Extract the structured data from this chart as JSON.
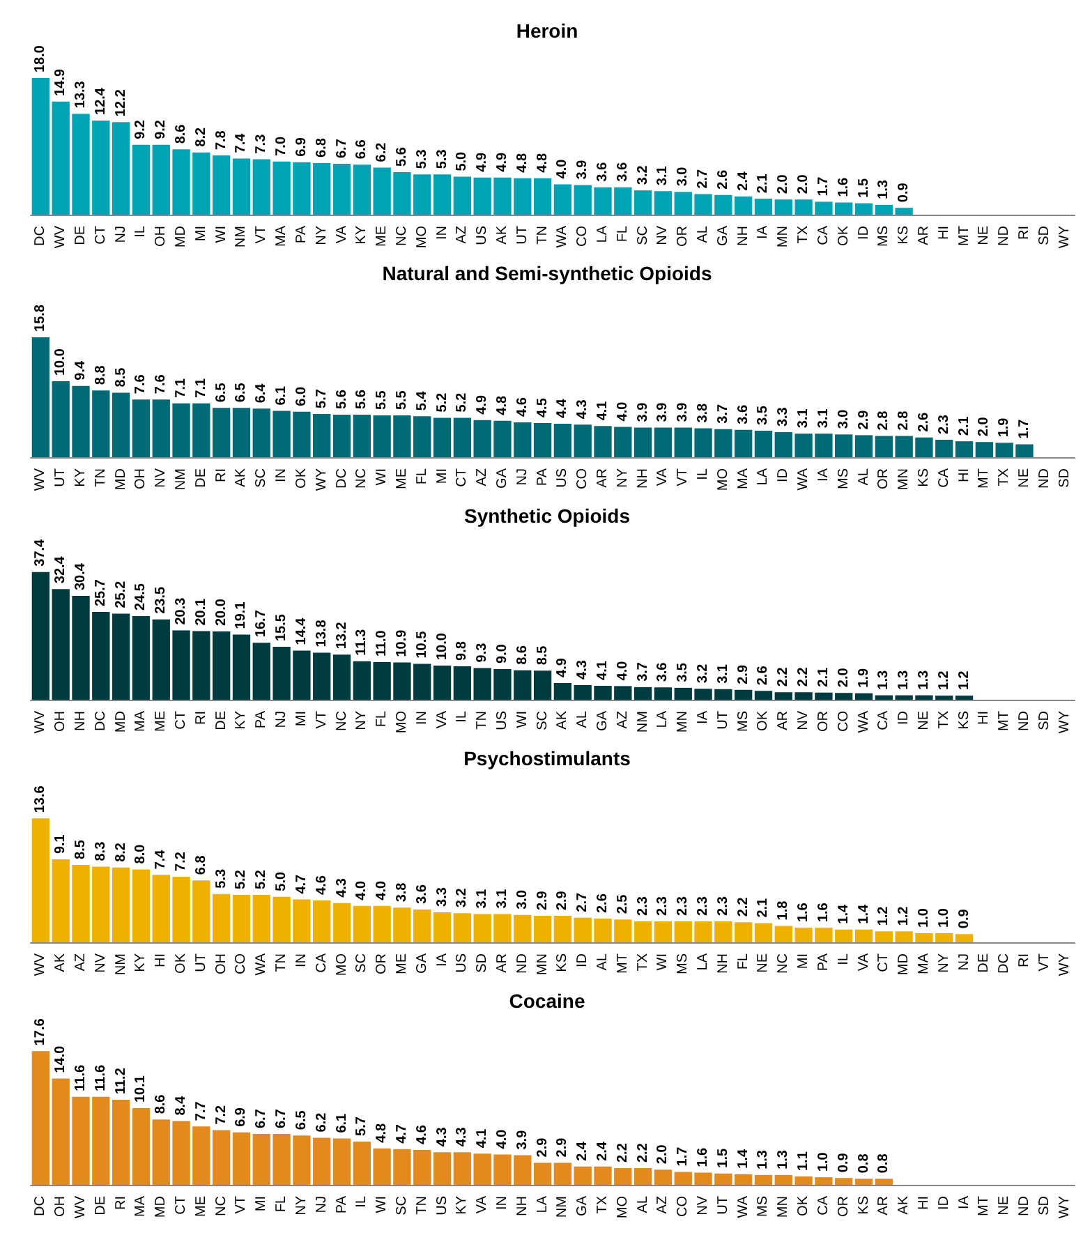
{
  "chart_data": [
    {
      "type": "bar",
      "title": "Heroin",
      "color": "#00a3b3",
      "categories": [
        "DC",
        "WV",
        "DE",
        "CT",
        "NJ",
        "IL",
        "OH",
        "MD",
        "MI",
        "WI",
        "NM",
        "VT",
        "MA",
        "PA",
        "NY",
        "VA",
        "KY",
        "ME",
        "NC",
        "MO",
        "IN",
        "AZ",
        "US",
        "AK",
        "UT",
        "TN",
        "WA",
        "CO",
        "LA",
        "FL",
        "SC",
        "NV",
        "OR",
        "AL",
        "GA",
        "NH",
        "IA",
        "MN",
        "TX",
        "CA",
        "OK",
        "ID",
        "MS",
        "KS",
        "AR",
        "HI",
        "MT",
        "NE",
        "ND",
        "RI",
        "SD",
        "WY"
      ],
      "values": [
        18.0,
        14.9,
        13.3,
        12.4,
        12.2,
        9.2,
        9.2,
        8.6,
        8.2,
        7.8,
        7.4,
        7.3,
        7.0,
        6.9,
        6.8,
        6.7,
        6.6,
        6.2,
        5.6,
        5.3,
        5.3,
        5.0,
        4.9,
        4.9,
        4.8,
        4.8,
        4.0,
        3.9,
        3.6,
        3.6,
        3.2,
        3.1,
        3.0,
        2.7,
        2.6,
        2.4,
        2.1,
        2.0,
        2.0,
        1.7,
        1.6,
        1.5,
        1.3,
        0.9,
        null,
        null,
        null,
        null,
        null,
        null,
        null,
        null
      ],
      "value_labels": [
        "18.0",
        "14.9",
        "13.3",
        "12.4",
        "12.2",
        "9.2",
        "9.2",
        "8.6",
        "8.2",
        "7.8",
        "7.4",
        "7.3",
        "7.0",
        "6.9",
        "6.8",
        "6.7",
        "6.6",
        "6.2",
        "5.6",
        "5.3",
        "5.3",
        "5.0",
        "4.9",
        "4.9",
        "4.8",
        "4.8",
        "4.0",
        "3.9",
        "3.6",
        "3.6",
        "3.2",
        "3.1",
        "3.0",
        "2.7",
        "2.6",
        "2.4",
        "2.1",
        "2.0",
        "2.0",
        "1.7",
        "1.6",
        "1.5",
        "1.3",
        "0.9",
        null,
        null,
        null,
        null,
        null,
        null,
        null,
        null
      ]
    },
    {
      "type": "bar",
      "title": "Natural and Semi-synthetic Opioids",
      "color": "#006b75",
      "categories": [
        "WV",
        "UT",
        "KY",
        "TN",
        "MD",
        "OH",
        "NV",
        "NM",
        "DE",
        "RI",
        "AK",
        "SC",
        "IN",
        "OK",
        "WY",
        "DC",
        "NC",
        "WI",
        "ME",
        "FL",
        "MI",
        "CT",
        "AZ",
        "GA",
        "NJ",
        "PA",
        "US",
        "CO",
        "AR",
        "NY",
        "NH",
        "VA",
        "VT",
        "IL",
        "MO",
        "MA",
        "LA",
        "ID",
        "WA",
        "IA",
        "MS",
        "AL",
        "OR",
        "MN",
        "KS",
        "CA",
        "HI",
        "MT",
        "TX",
        "NE",
        "ND",
        "SD"
      ],
      "values": [
        15.8,
        10.0,
        9.4,
        8.8,
        8.5,
        7.6,
        7.6,
        7.1,
        7.1,
        6.5,
        6.5,
        6.4,
        6.1,
        6.0,
        5.7,
        5.6,
        5.6,
        5.5,
        5.5,
        5.4,
        5.2,
        5.2,
        4.9,
        4.8,
        4.6,
        4.5,
        4.4,
        4.3,
        4.1,
        4.0,
        3.9,
        3.9,
        3.9,
        3.8,
        3.7,
        3.6,
        3.5,
        3.3,
        3.1,
        3.1,
        3.0,
        2.9,
        2.8,
        2.8,
        2.6,
        2.3,
        2.1,
        2.0,
        1.9,
        1.7,
        null,
        null
      ],
      "value_labels": [
        "15.8",
        "10.0",
        "9.4",
        "8.8",
        "8.5",
        "7.6",
        "7.6",
        "7.1",
        "7.1",
        "6.5",
        "6.5",
        "6.4",
        "6.1",
        "6.0",
        "5.7",
        "5.6",
        "5.6",
        "5.5",
        "5.5",
        "5.4",
        "5.2",
        "5.2",
        "4.9",
        "4.8",
        "4.6",
        "4.5",
        "4.4",
        "4.3",
        "4.1",
        "4.0",
        "3.9",
        "3.9",
        "3.9",
        "3.8",
        "3.7",
        "3.6",
        "3.5",
        "3.3",
        "3.1",
        "3.1",
        "3.0",
        "2.9",
        "2.8",
        "2.8",
        "2.6",
        "2.3",
        "2.1",
        "2.0",
        "1.9",
        "1.7",
        null,
        null
      ]
    },
    {
      "type": "bar",
      "title": "Synthetic Opioids",
      "color": "#003b40",
      "categories": [
        "WV",
        "OH",
        "NH",
        "DC",
        "MD",
        "MA",
        "ME",
        "CT",
        "RI",
        "DE",
        "KY",
        "PA",
        "NJ",
        "MI",
        "VT",
        "NC",
        "NY",
        "FL",
        "MO",
        "IN",
        "VA",
        "IL",
        "TN",
        "US",
        "WI",
        "SC",
        "AK",
        "AL",
        "GA",
        "AZ",
        "NM",
        "LA",
        "MN",
        "IA",
        "UT",
        "MS",
        "OK",
        "AR",
        "NV",
        "OR",
        "CO",
        "WA",
        "CA",
        "ID",
        "NE",
        "TX",
        "KS",
        "HI",
        "MT",
        "ND",
        "SD",
        "WY"
      ],
      "values": [
        37.4,
        32.4,
        30.4,
        25.7,
        25.2,
        24.5,
        23.5,
        20.3,
        20.1,
        20.0,
        19.1,
        16.7,
        15.5,
        14.4,
        13.8,
        13.2,
        11.3,
        11.0,
        10.9,
        10.5,
        10.0,
        9.8,
        9.3,
        9.0,
        8.6,
        8.5,
        4.9,
        4.3,
        4.1,
        4.0,
        3.7,
        3.6,
        3.5,
        3.2,
        3.1,
        2.9,
        2.6,
        2.2,
        2.2,
        2.1,
        2.0,
        1.9,
        1.3,
        1.3,
        1.3,
        1.2,
        1.2,
        null,
        null,
        null,
        null,
        null
      ],
      "value_labels": [
        "37.4",
        "32.4",
        "30.4",
        "25.7",
        "25.2",
        "24.5",
        "23.5",
        "20.3",
        "20.1",
        "20.0",
        "19.1",
        "16.7",
        "15.5",
        "14.4",
        "13.8",
        "13.2",
        "11.3",
        "11.0",
        "10.9",
        "10.5",
        "10.0",
        "9.8",
        "9.3",
        "9.0",
        "8.6",
        "8.5",
        "4.9",
        "4.3",
        "4.1",
        "4.0",
        "3.7",
        "3.6",
        "3.5",
        "3.2",
        "3.1",
        "2.9",
        "2.6",
        "2.2",
        "2.2",
        "2.1",
        "2.0",
        "1.9",
        "1.3",
        "1.3",
        "1.3",
        "1.2",
        "1.2",
        null,
        null,
        null,
        null,
        null
      ]
    },
    {
      "type": "bar",
      "title": "Psychostimulants",
      "color": "#f0b000",
      "categories": [
        "WV",
        "AK",
        "AZ",
        "NV",
        "NM",
        "KY",
        "HI",
        "OK",
        "UT",
        "OH",
        "CO",
        "WA",
        "TN",
        "IN",
        "CA",
        "MO",
        "SC",
        "OR",
        "ME",
        "GA",
        "IA",
        "US",
        "SD",
        "AR",
        "ND",
        "MN",
        "KS",
        "ID",
        "AL",
        "MT",
        "TX",
        "WI",
        "MS",
        "LA",
        "NH",
        "FL",
        "NE",
        "NC",
        "MI",
        "PA",
        "IL",
        "VA",
        "CT",
        "MD",
        "MA",
        "NY",
        "NJ",
        "DE",
        "DC",
        "RI",
        "VT",
        "WY"
      ],
      "values": [
        13.6,
        9.1,
        8.5,
        8.3,
        8.2,
        8.0,
        7.4,
        7.2,
        6.8,
        5.3,
        5.2,
        5.2,
        5.0,
        4.7,
        4.6,
        4.3,
        4.0,
        4.0,
        3.8,
        3.6,
        3.3,
        3.2,
        3.1,
        3.1,
        3.0,
        2.9,
        2.9,
        2.7,
        2.6,
        2.5,
        2.3,
        2.3,
        2.3,
        2.3,
        2.3,
        2.2,
        2.1,
        1.8,
        1.6,
        1.6,
        1.4,
        1.4,
        1.2,
        1.2,
        1.0,
        1.0,
        0.9,
        null,
        null,
        null,
        null,
        null
      ],
      "value_labels": [
        "13.6",
        "9.1",
        "8.5",
        "8.3",
        "8.2",
        "8.0",
        "7.4",
        "7.2",
        "6.8",
        "5.3",
        "5.2",
        "5.2",
        "5.0",
        "4.7",
        "4.6",
        "4.3",
        "4.0",
        "4.0",
        "3.8",
        "3.6",
        "3.3",
        "3.2",
        "3.1",
        "3.1",
        "3.0",
        "2.9",
        "2.9",
        "2.7",
        "2.6",
        "2.5",
        "2.3",
        "2.3",
        "2.3",
        "2.3",
        "2.3",
        "2.2",
        "2.1",
        "1.8",
        "1.6",
        "1.6",
        "1.4",
        "1.4",
        "1.2",
        "1.2",
        "1.0",
        "1.0",
        "0.9",
        null,
        null,
        null,
        null,
        null
      ]
    },
    {
      "type": "bar",
      "title": "Cocaine",
      "color": "#e38a1e",
      "categories": [
        "DC",
        "OH",
        "WV",
        "DE",
        "RI",
        "MA",
        "MD",
        "CT",
        "ME",
        "NC",
        "VT",
        "MI",
        "FL",
        "NY",
        "NJ",
        "PA",
        "IL",
        "WI",
        "SC",
        "TN",
        "US",
        "KY",
        "VA",
        "IN",
        "NH",
        "LA",
        "NM",
        "GA",
        "TX",
        "MO",
        "AL",
        "AZ",
        "CO",
        "NV",
        "UT",
        "WA",
        "MS",
        "MN",
        "OK",
        "CA",
        "OR",
        "KS",
        "AR",
        "AK",
        "HI",
        "ID",
        "IA",
        "MT",
        "NE",
        "ND",
        "SD",
        "WY"
      ],
      "values": [
        17.6,
        14.0,
        11.6,
        11.6,
        11.2,
        10.1,
        8.6,
        8.4,
        7.7,
        7.2,
        6.9,
        6.7,
        6.7,
        6.5,
        6.2,
        6.1,
        5.7,
        4.8,
        4.7,
        4.6,
        4.3,
        4.3,
        4.1,
        4.0,
        3.9,
        2.9,
        2.9,
        2.4,
        2.4,
        2.2,
        2.2,
        2.0,
        1.7,
        1.6,
        1.5,
        1.4,
        1.3,
        1.3,
        1.1,
        1.0,
        0.9,
        0.8,
        0.8,
        null,
        null,
        null,
        null,
        null,
        null,
        null,
        null,
        null
      ],
      "value_labels": [
        "17.6",
        "14.0",
        "11.6",
        "11.6",
        "11.2",
        "10.1",
        "8.6",
        "8.4",
        "7.7",
        "7.2",
        "6.9",
        "6.7",
        "6.7",
        "6.5",
        "6.2",
        "6.1",
        "5.7",
        "4.8",
        "4.7",
        "4.6",
        "4.3",
        "4.3",
        "4.1",
        "4.0",
        "3.9",
        "2.9",
        "2.9",
        "2.4",
        "2.4",
        "2.2",
        "2.2",
        "2.0",
        "1.7",
        "1.6",
        "1.5",
        "1.4",
        "1.3",
        "1.3",
        "1.1",
        "1.0",
        "0.9",
        "0.8",
        "0.8",
        null,
        null,
        null,
        null,
        null,
        null,
        null,
        null,
        null
      ]
    }
  ]
}
